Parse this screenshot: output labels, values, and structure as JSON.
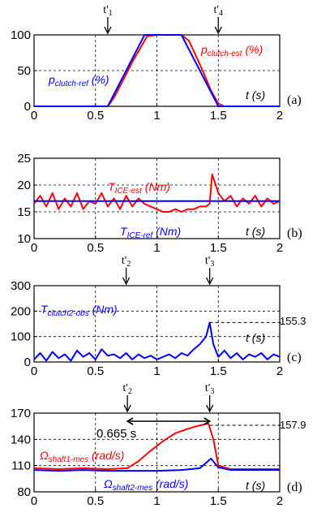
{
  "colors": {
    "red": "#ff0000",
    "blue": "#0000ff",
    "black": "#000000"
  },
  "chart_data": [
    {
      "type": "line",
      "panel": "(a)",
      "xlim": [
        0,
        2
      ],
      "ylim": [
        0,
        100
      ],
      "xticks": [
        "0",
        "0.5",
        "1",
        "1.5",
        "2"
      ],
      "yticks": [
        "0",
        "50",
        "100"
      ],
      "t_unit": "t (s)",
      "markers": [
        {
          "sym": "t'",
          "sub": "1",
          "x": 0.6
        },
        {
          "sym": "t'",
          "sub": "4",
          "x": 1.5
        }
      ],
      "series": [
        {
          "label_main": "p",
          "label_sub": "clutch-est",
          "label_unit": " (%)",
          "color": "#ff0000",
          "x": [
            0,
            0.6,
            0.65,
            0.72,
            0.8,
            0.86,
            0.92,
            1.0,
            1.1,
            1.2,
            1.26,
            1.32,
            1.38,
            1.44,
            1.5,
            1.55,
            2.0
          ],
          "y": [
            0,
            0,
            12,
            35,
            62,
            80,
            98,
            100,
            100,
            100,
            92,
            70,
            47,
            22,
            4,
            0,
            0
          ]
        },
        {
          "label_main": "p",
          "label_sub": "clutch-ref",
          "label_unit": " (%)",
          "color": "#0000ff",
          "x": [
            0,
            0.6,
            0.9,
            1.2,
            1.5,
            2.0
          ],
          "y": [
            0,
            0,
            100,
            100,
            0,
            0
          ]
        }
      ]
    },
    {
      "type": "line",
      "panel": "(b)",
      "xlim": [
        0,
        2
      ],
      "ylim": [
        10,
        25
      ],
      "xticks": [
        "0",
        "0.5",
        "1",
        "1.5",
        "2"
      ],
      "yticks": [
        "10",
        "15",
        "20",
        "25"
      ],
      "t_unit": "t (s)",
      "series": [
        {
          "label_main": "T",
          "label_sub": "ICE-est",
          "label_unit": " (Nm)",
          "color": "#ff0000",
          "x": [
            0,
            0.05,
            0.1,
            0.15,
            0.2,
            0.25,
            0.3,
            0.35,
            0.4,
            0.45,
            0.5,
            0.55,
            0.6,
            0.65,
            0.7,
            0.75,
            0.8,
            0.85,
            0.9,
            0.95,
            1.0,
            1.05,
            1.1,
            1.15,
            1.2,
            1.25,
            1.3,
            1.35,
            1.4,
            1.43,
            1.45,
            1.5,
            1.55,
            1.6,
            1.65,
            1.7,
            1.75,
            1.8,
            1.85,
            1.9,
            1.95,
            2.0
          ],
          "y": [
            16.5,
            18,
            16,
            18.5,
            15.5,
            17.5,
            16,
            18.5,
            15.5,
            17,
            16.5,
            18.5,
            16,
            17.5,
            15.5,
            18,
            16,
            17.5,
            16.5,
            16,
            15.5,
            15,
            15,
            15.5,
            15,
            15.5,
            15.5,
            16,
            16,
            16.5,
            22,
            18.5,
            17,
            18,
            16,
            17.5,
            16.5,
            18,
            16,
            17.5,
            16.5,
            17
          ]
        },
        {
          "label_main": "T",
          "label_sub": "ICE-ref",
          "label_unit": " (Nm)",
          "color": "#0000ff",
          "x": [
            0,
            2
          ],
          "y": [
            17,
            17
          ]
        }
      ]
    },
    {
      "type": "line",
      "panel": "(c)",
      "xlim": [
        0,
        2
      ],
      "ylim": [
        0,
        300
      ],
      "xticks": [
        "0",
        "0.5",
        "1",
        "1.5",
        "2"
      ],
      "yticks": [
        "0",
        "100",
        "200",
        "300"
      ],
      "t_unit": "t (s)",
      "peak_label": "155.3",
      "markers": [
        {
          "sym": "t'",
          "sub": "2",
          "x": 0.75
        },
        {
          "sym": "t'",
          "sub": "3",
          "x": 1.43
        }
      ],
      "series": [
        {
          "label_main": "T",
          "label_sub": "clutch2-obs",
          "label_unit": " (Nm)",
          "color": "#0000ff",
          "x": [
            0,
            0.05,
            0.1,
            0.15,
            0.2,
            0.25,
            0.3,
            0.35,
            0.4,
            0.45,
            0.5,
            0.55,
            0.6,
            0.65,
            0.7,
            0.75,
            0.8,
            0.85,
            0.9,
            0.95,
            1.0,
            1.05,
            1.1,
            1.15,
            1.2,
            1.25,
            1.3,
            1.35,
            1.4,
            1.43,
            1.46,
            1.5,
            1.55,
            1.6,
            1.65,
            1.7,
            1.75,
            1.8,
            1.85,
            1.9,
            1.95,
            2.0
          ],
          "y": [
            10,
            35,
            5,
            40,
            15,
            30,
            5,
            45,
            20,
            35,
            10,
            50,
            25,
            30,
            15,
            35,
            10,
            30,
            15,
            25,
            10,
            20,
            30,
            15,
            35,
            25,
            50,
            70,
            100,
            155,
            70,
            20,
            45,
            15,
            35,
            10,
            30,
            20,
            35,
            10,
            30,
            20
          ]
        }
      ]
    },
    {
      "type": "line",
      "panel": "(d)",
      "xlim": [
        0,
        2
      ],
      "ylim": [
        80,
        170
      ],
      "xticks": [
        "0",
        "0.5",
        "1",
        "1.5",
        "2"
      ],
      "yticks": [
        "80",
        "110",
        "140",
        "170"
      ],
      "t_unit": "t (s)",
      "peak_label": "157.9",
      "duration_label": "0.665 s",
      "markers": [
        {
          "sym": "t'",
          "sub": "2",
          "x": 0.76
        },
        {
          "sym": "t'",
          "sub": "3",
          "x": 1.43
        }
      ],
      "series": [
        {
          "label_main": "Ω",
          "label_sub": "shaft1-mes",
          "label_unit": " (rad/s)",
          "color": "#ff0000",
          "x": [
            0,
            0.2,
            0.4,
            0.6,
            0.76,
            0.85,
            0.95,
            1.05,
            1.15,
            1.25,
            1.35,
            1.42,
            1.46,
            1.5,
            1.6,
            2.0
          ],
          "y": [
            107,
            106,
            107,
            106,
            107,
            115,
            127,
            138,
            147,
            152,
            156,
            157.9,
            140,
            110,
            106,
            106
          ]
        },
        {
          "label_main": "Ω",
          "label_sub": "shaft2-mes",
          "label_unit": " (rad/s)",
          "color": "#0000ff",
          "x": [
            0,
            0.2,
            0.4,
            0.6,
            0.8,
            1.0,
            1.2,
            1.35,
            1.44,
            1.5,
            1.6,
            2.0
          ],
          "y": [
            105,
            104,
            105,
            104,
            104,
            104,
            105,
            107,
            118,
            108,
            105,
            105
          ]
        }
      ]
    }
  ]
}
